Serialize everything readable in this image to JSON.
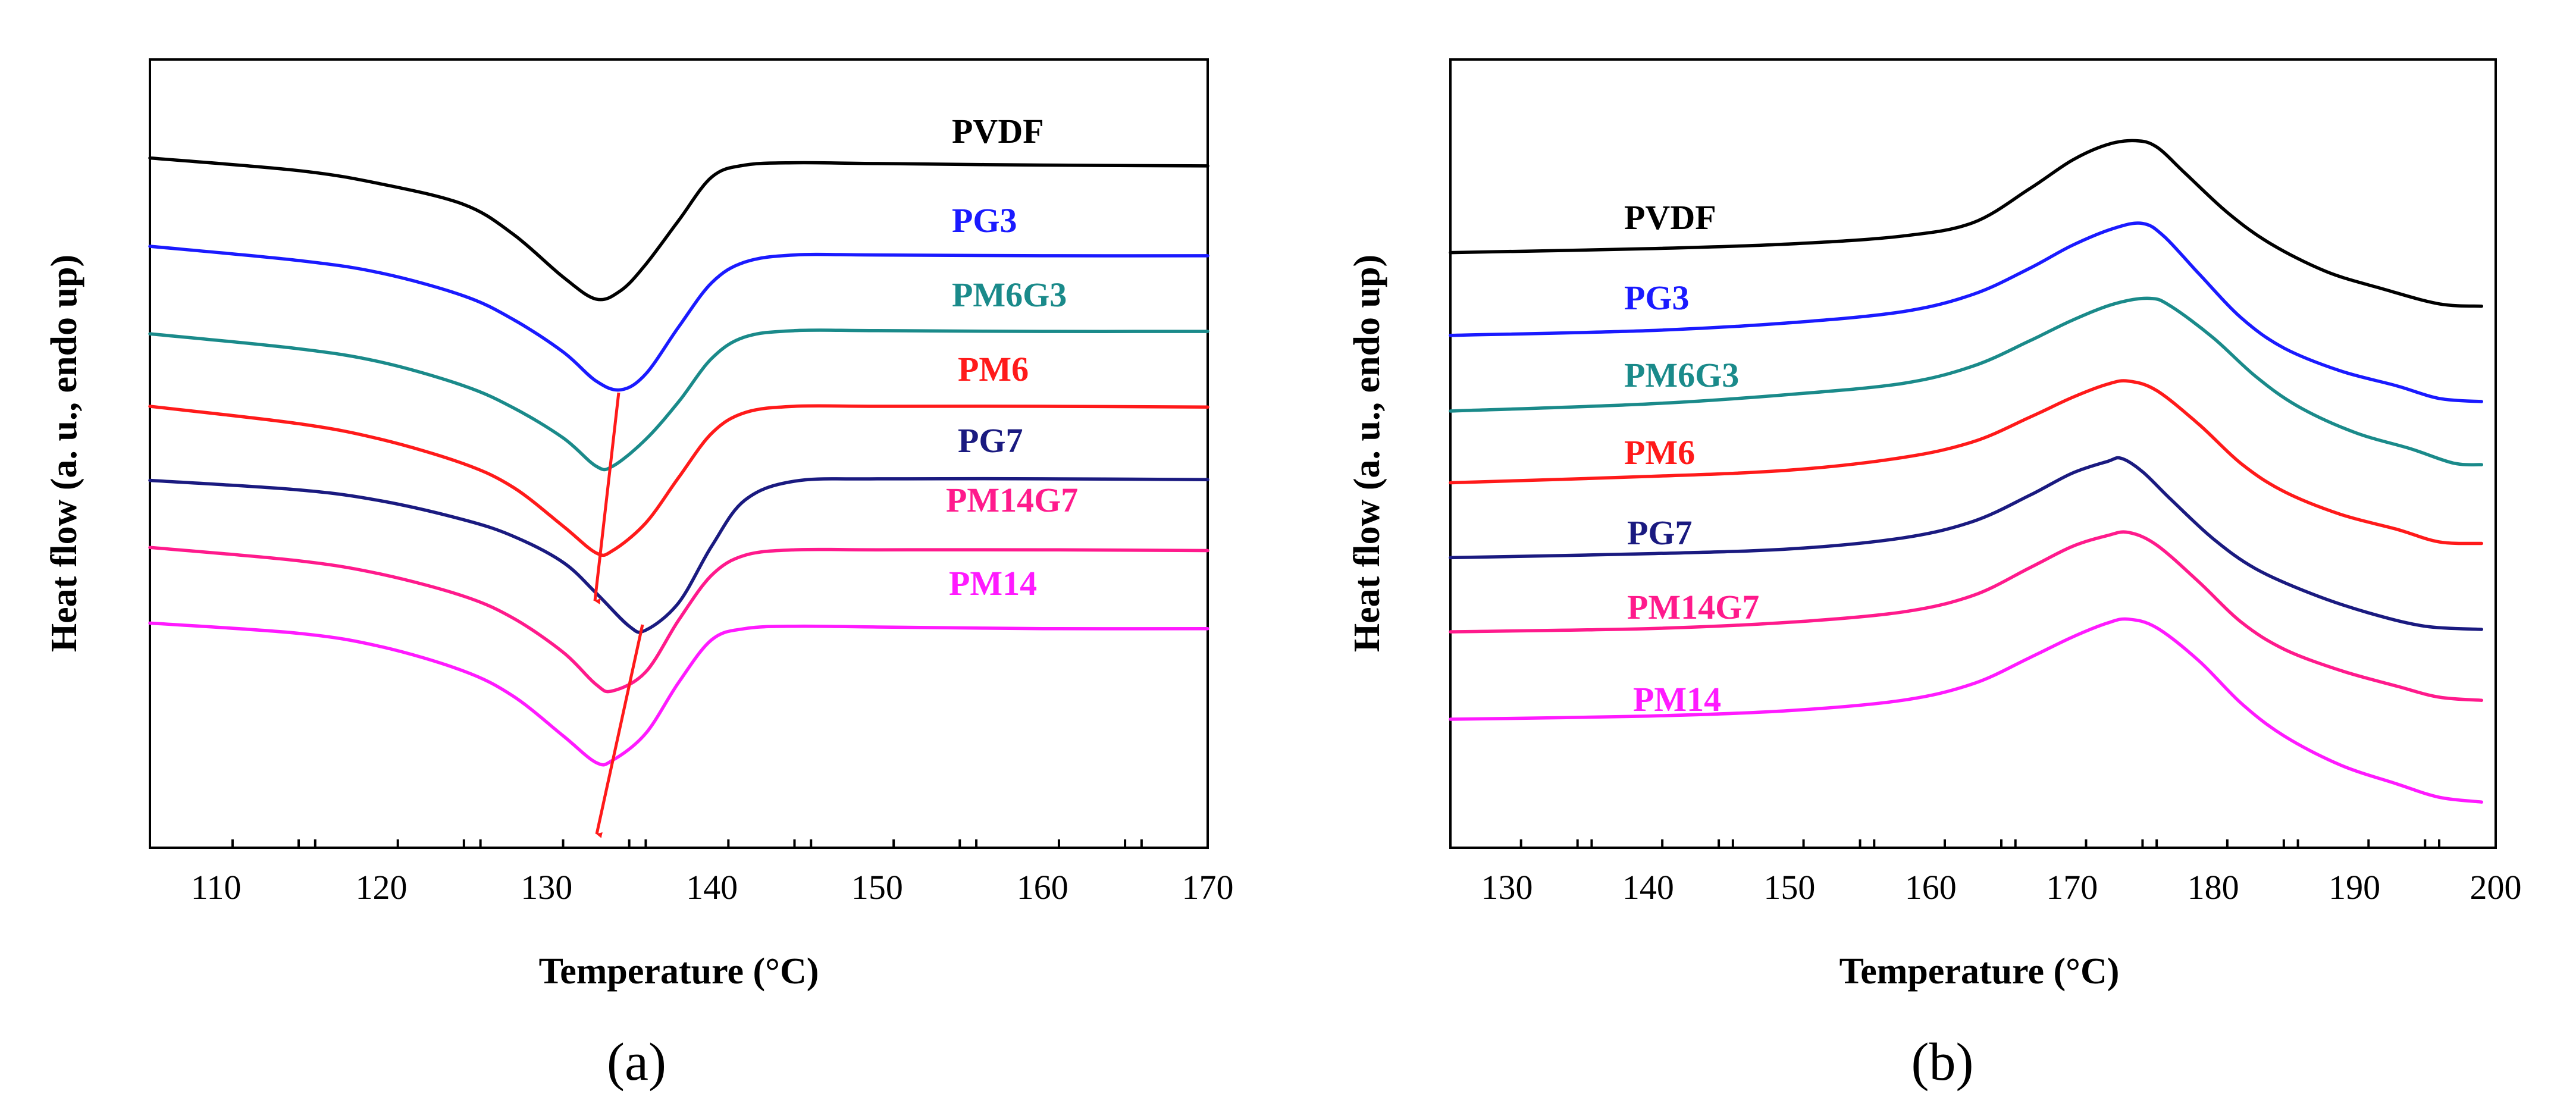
{
  "chart_data": [
    {
      "type": "line",
      "panel": "(a)",
      "xlabel": "Temperature (°C)",
      "ylabel": "Heat flow (a. u., endo up)",
      "xlim": [
        106,
        170
      ],
      "ylim": [
        0,
        100
      ],
      "xticks": [
        110,
        120,
        130,
        140,
        150,
        160,
        170
      ],
      "annotations": "Red arrows indicating shift of curve minima",
      "series": [
        {
          "name": "PVDF",
          "color": "#000000",
          "values": [
            [
              106,
              87.5
            ],
            [
              115,
              85.9
            ],
            [
              120,
              84.2
            ],
            [
              125,
              81.6
            ],
            [
              128,
              77.8
            ],
            [
              131,
              72.4
            ],
            [
              133,
              69.6
            ],
            [
              134.5,
              70.7
            ],
            [
              136,
              74.0
            ],
            [
              138,
              79.6
            ],
            [
              140,
              85.1
            ],
            [
              142,
              86.6
            ],
            [
              145,
              86.9
            ],
            [
              150,
              86.8
            ],
            [
              160,
              86.6
            ],
            [
              170,
              86.5
            ]
          ]
        },
        {
          "name": "PG3",
          "color": "#1a1aff",
          "values": [
            [
              106,
              76.3
            ],
            [
              115,
              74.5
            ],
            [
              120,
              72.9
            ],
            [
              125,
              70.0
            ],
            [
              128,
              67.0
            ],
            [
              131,
              62.9
            ],
            [
              133,
              59.2
            ],
            [
              134.5,
              58.1
            ],
            [
              136,
              60.1
            ],
            [
              138,
              66.1
            ],
            [
              140,
              71.7
            ],
            [
              142,
              74.3
            ],
            [
              145,
              75.2
            ],
            [
              150,
              75.2
            ],
            [
              160,
              75.1
            ],
            [
              170,
              75.1
            ]
          ]
        },
        {
          "name": "PM6G3",
          "color": "#1a8a8a",
          "values": [
            [
              106,
              65.2
            ],
            [
              115,
              63.3
            ],
            [
              120,
              61.6
            ],
            [
              125,
              58.6
            ],
            [
              128,
              55.8
            ],
            [
              131,
              52.0
            ],
            [
              133,
              48.4
            ],
            [
              134,
              48.4
            ],
            [
              136,
              51.8
            ],
            [
              138,
              56.6
            ],
            [
              140,
              62.1
            ],
            [
              142,
              64.8
            ],
            [
              145,
              65.6
            ],
            [
              150,
              65.6
            ],
            [
              160,
              65.5
            ],
            [
              170,
              65.5
            ]
          ]
        },
        {
          "name": "PM6",
          "color": "#ff1a1a",
          "values": [
            [
              106,
              56.0
            ],
            [
              115,
              53.8
            ],
            [
              120,
              51.8
            ],
            [
              125,
              48.7
            ],
            [
              128,
              45.7
            ],
            [
              131,
              40.8
            ],
            [
              133,
              37.4
            ],
            [
              134,
              37.7
            ],
            [
              136,
              41.2
            ],
            [
              138,
              47.0
            ],
            [
              140,
              52.6
            ],
            [
              142,
              55.2
            ],
            [
              145,
              56.0
            ],
            [
              150,
              56.0
            ],
            [
              160,
              56.0
            ],
            [
              170,
              55.9
            ]
          ]
        },
        {
          "name": "PG7",
          "color": "#1a1a80",
          "values": [
            [
              106,
              46.6
            ],
            [
              115,
              45.4
            ],
            [
              120,
              44.0
            ],
            [
              125,
              41.6
            ],
            [
              128,
              39.5
            ],
            [
              131,
              36.2
            ],
            [
              133,
              32.3
            ],
            [
              135,
              28.1
            ],
            [
              136,
              27.6
            ],
            [
              138,
              31.1
            ],
            [
              140,
              38.3
            ],
            [
              142,
              44.1
            ],
            [
              145,
              46.5
            ],
            [
              150,
              46.8
            ],
            [
              160,
              46.8
            ],
            [
              170,
              46.7
            ]
          ]
        },
        {
          "name": "PM14G7",
          "color": "#ff1a8c",
          "values": [
            [
              106,
              38.1
            ],
            [
              115,
              36.4
            ],
            [
              120,
              34.7
            ],
            [
              125,
              31.9
            ],
            [
              128,
              29.1
            ],
            [
              131,
              24.8
            ],
            [
              133,
              20.7
            ],
            [
              134,
              19.9
            ],
            [
              136,
              22.3
            ],
            [
              138,
              28.9
            ],
            [
              140,
              34.6
            ],
            [
              142,
              37.1
            ],
            [
              145,
              37.8
            ],
            [
              150,
              37.8
            ],
            [
              160,
              37.8
            ],
            [
              170,
              37.7
            ]
          ]
        },
        {
          "name": "PM14",
          "color": "#ff1aff",
          "values": [
            [
              106,
              28.5
            ],
            [
              115,
              27.2
            ],
            [
              120,
              25.5
            ],
            [
              125,
              22.4
            ],
            [
              128,
              19.2
            ],
            [
              131,
              14.2
            ],
            [
              133,
              10.8
            ],
            [
              134,
              11.1
            ],
            [
              136,
              14.5
            ],
            [
              138,
              21.0
            ],
            [
              140,
              26.4
            ],
            [
              142,
              27.8
            ],
            [
              145,
              28.1
            ],
            [
              150,
              28.0
            ],
            [
              160,
              27.8
            ],
            [
              170,
              27.8
            ]
          ]
        }
      ]
    },
    {
      "type": "line",
      "panel": "(b)",
      "xlabel": "Temperature (°C)",
      "ylabel": "Heat flow (a. u., endo up)",
      "xlim": [
        126,
        200
      ],
      "ylim": [
        0,
        100
      ],
      "xticks": [
        130,
        140,
        150,
        160,
        170,
        180,
        190,
        200
      ],
      "series": [
        {
          "name": "PVDF",
          "color": "#000000",
          "values": [
            [
              126,
              75.5
            ],
            [
              140,
              76.0
            ],
            [
              150,
              76.6
            ],
            [
              158,
              77.6
            ],
            [
              163,
              79.3
            ],
            [
              167,
              83.6
            ],
            [
              170,
              87.2
            ],
            [
              172.5,
              89.2
            ],
            [
              174.5,
              89.7
            ],
            [
              176,
              88.9
            ],
            [
              178,
              85.6
            ],
            [
              181,
              80.6
            ],
            [
              184,
              76.7
            ],
            [
              188,
              73.1
            ],
            [
              192,
              70.9
            ],
            [
              196,
              69.0
            ],
            [
              199,
              68.7
            ]
          ]
        },
        {
          "name": "PG3",
          "color": "#1a1aff",
          "values": [
            [
              126,
              65.0
            ],
            [
              140,
              65.6
            ],
            [
              150,
              66.6
            ],
            [
              158,
              68.0
            ],
            [
              163,
              70.2
            ],
            [
              167,
              73.5
            ],
            [
              170,
              76.4
            ],
            [
              173,
              78.6
            ],
            [
              175,
              79.2
            ],
            [
              176.5,
              77.6
            ],
            [
              179,
              72.8
            ],
            [
              182,
              67.2
            ],
            [
              185,
              63.4
            ],
            [
              189,
              60.5
            ],
            [
              193,
              58.6
            ],
            [
              196,
              57.0
            ],
            [
              199,
              56.6
            ]
          ]
        },
        {
          "name": "PM6G3",
          "color": "#1a8a8a",
          "values": [
            [
              126,
              55.4
            ],
            [
              140,
              56.3
            ],
            [
              150,
              57.5
            ],
            [
              158,
              58.9
            ],
            [
              163,
              61.1
            ],
            [
              167,
              64.3
            ],
            [
              170,
              66.9
            ],
            [
              173,
              69.0
            ],
            [
              175.5,
              69.7
            ],
            [
              177,
              68.7
            ],
            [
              180,
              64.7
            ],
            [
              183,
              59.8
            ],
            [
              186,
              56.0
            ],
            [
              190,
              52.7
            ],
            [
              194,
              50.6
            ],
            [
              197,
              48.8
            ],
            [
              199,
              48.6
            ]
          ]
        },
        {
          "name": "PM6",
          "color": "#ff1a1a",
          "values": [
            [
              126,
              46.3
            ],
            [
              140,
              47.1
            ],
            [
              150,
              47.9
            ],
            [
              158,
              49.5
            ],
            [
              163,
              51.5
            ],
            [
              167,
              54.6
            ],
            [
              170,
              57.1
            ],
            [
              172.5,
              58.8
            ],
            [
              174,
              59.2
            ],
            [
              176,
              58.0
            ],
            [
              179,
              53.7
            ],
            [
              182,
              48.7
            ],
            [
              185,
              45.2
            ],
            [
              189,
              42.3
            ],
            [
              193,
              40.4
            ],
            [
              196,
              38.8
            ],
            [
              199,
              38.6
            ]
          ]
        },
        {
          "name": "PG7",
          "color": "#1a1a80",
          "values": [
            [
              126,
              36.8
            ],
            [
              140,
              37.3
            ],
            [
              150,
              37.9
            ],
            [
              158,
              39.3
            ],
            [
              163,
              41.4
            ],
            [
              167,
              44.7
            ],
            [
              170,
              47.5
            ],
            [
              172.5,
              49.0
            ],
            [
              173.5,
              49.4
            ],
            [
              175,
              47.7
            ],
            [
              177,
              44.2
            ],
            [
              180,
              39.2
            ],
            [
              183,
              35.4
            ],
            [
              187,
              32.2
            ],
            [
              191,
              29.8
            ],
            [
              195,
              28.1
            ],
            [
              199,
              27.7
            ]
          ]
        },
        {
          "name": "PM14G7",
          "color": "#ff1a8c",
          "values": [
            [
              126,
              27.4
            ],
            [
              140,
              27.8
            ],
            [
              150,
              28.6
            ],
            [
              158,
              29.9
            ],
            [
              163,
              32.0
            ],
            [
              167,
              35.5
            ],
            [
              170,
              38.2
            ],
            [
              172.5,
              39.6
            ],
            [
              174,
              40.0
            ],
            [
              176,
              38.4
            ],
            [
              179,
              33.7
            ],
            [
              182,
              28.6
            ],
            [
              185,
              25.2
            ],
            [
              189,
              22.5
            ],
            [
              193,
              20.5
            ],
            [
              196,
              19.1
            ],
            [
              199,
              18.7
            ]
          ]
        },
        {
          "name": "PM14",
          "color": "#ff1aff",
          "values": [
            [
              126,
              16.3
            ],
            [
              140,
              16.7
            ],
            [
              150,
              17.4
            ],
            [
              158,
              18.7
            ],
            [
              163,
              20.8
            ],
            [
              167,
              24.1
            ],
            [
              170,
              26.7
            ],
            [
              172.5,
              28.5
            ],
            [
              174,
              29.0
            ],
            [
              176,
              27.9
            ],
            [
              179,
              23.7
            ],
            [
              182,
              18.3
            ],
            [
              185,
              14.2
            ],
            [
              189,
              10.5
            ],
            [
              193,
              8.1
            ],
            [
              196,
              6.4
            ],
            [
              199,
              5.8
            ]
          ]
        }
      ]
    }
  ]
}
